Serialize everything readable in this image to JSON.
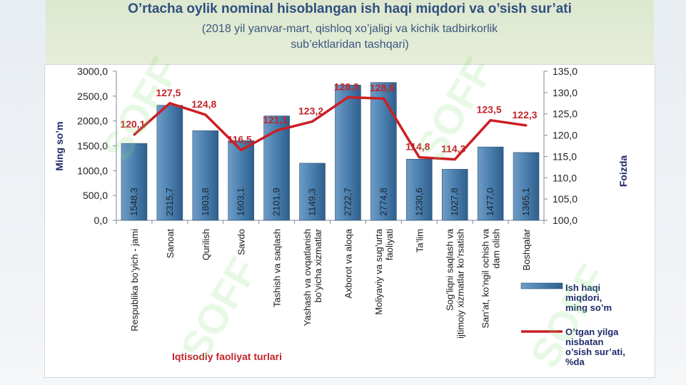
{
  "slide": {
    "title": "O’rtacha oylik nominal hisoblangan ish haqi miqdori va o’sish sur’ati",
    "subtitle_line1": "(2018 yil yanvar-mart, qishloq xo’jaligi va kichik tadbirkorlik",
    "subtitle_line2": "sub’ektlaridan tashqari)"
  },
  "colors": {
    "bar": "#4a7fae",
    "line": "#cc1f24",
    "title": "#2f4f7f"
  },
  "chart_data": {
    "type": "bar",
    "categories": [
      [
        "Respublika bo’yich - jami"
      ],
      [
        "Sanoat"
      ],
      [
        "Qurilish"
      ],
      [
        "Savdo"
      ],
      [
        "Tashish va saqlash"
      ],
      [
        "Yashash va ovqatlanish",
        "bo’yicha xizmatlar"
      ],
      [
        "Axborot va aloqa"
      ],
      [
        "Moliyaviy va sug’urta",
        "faoliyati"
      ],
      [
        "Ta’lim"
      ],
      [
        "Sog’liqni saqlash va",
        "ijtimoiy xizmatlar ko’rsatish"
      ],
      [
        "San’at, ko’ngil ochish va",
        "dam olish"
      ],
      [
        "Boshqalar"
      ]
    ],
    "series": [
      {
        "name": "Ish haqi miqdori, ming so’m",
        "type": "bar",
        "axis": "left",
        "values": [
          1548.3,
          2315.7,
          1803.8,
          1603.1,
          2101.9,
          1149.3,
          2722.7,
          2774.8,
          1230.6,
          1027.8,
          1477.0,
          1365.1
        ],
        "labels": [
          "1548,3",
          "2315,7",
          "1803,8",
          "1603,1",
          "2101,9",
          "1149,3",
          "2722,7",
          "2774,8",
          "1230,6",
          "1027,8",
          "1477,0",
          "1365,1"
        ]
      },
      {
        "name": "O’tgan yilga nisbatan o’sish sur’ati, %da",
        "type": "line",
        "axis": "right",
        "values": [
          120.1,
          127.5,
          124.8,
          116.5,
          121.1,
          123.2,
          128.9,
          128.6,
          114.8,
          114.3,
          123.5,
          122.3
        ],
        "labels": [
          "120,1",
          "127,5",
          "124,8",
          "116,5",
          "121,1",
          "123,2",
          "128,9",
          "128,6",
          "114,8",
          "114,3",
          "123,5",
          "122,3"
        ]
      }
    ],
    "ylabel": "Ming so’m",
    "y2label": "Foizda",
    "xlabel": "Iqtisodiy faoliyat turlari",
    "ylim": [
      0,
      3000
    ],
    "y2lim": [
      100,
      135
    ],
    "yticks": [
      "0,0",
      "500,0",
      "1000,0",
      "1500,0",
      "2000,0",
      "2500,0",
      "3000,0"
    ],
    "y2ticks": [
      "100,0",
      "105,0",
      "110,0",
      "115,0",
      "120,0",
      "125,0",
      "130,0",
      "135,0"
    ],
    "legend": {
      "position": "bottom-right",
      "bar_label_lines": [
        "Ish haqi",
        "miqdori,",
        "ming so’m"
      ],
      "line_label_lines": [
        "O’tgan yilga",
        "nisbatan",
        "o’sish sur’ati,",
        "%da"
      ]
    },
    "grid": false
  },
  "watermark": "SOFF"
}
